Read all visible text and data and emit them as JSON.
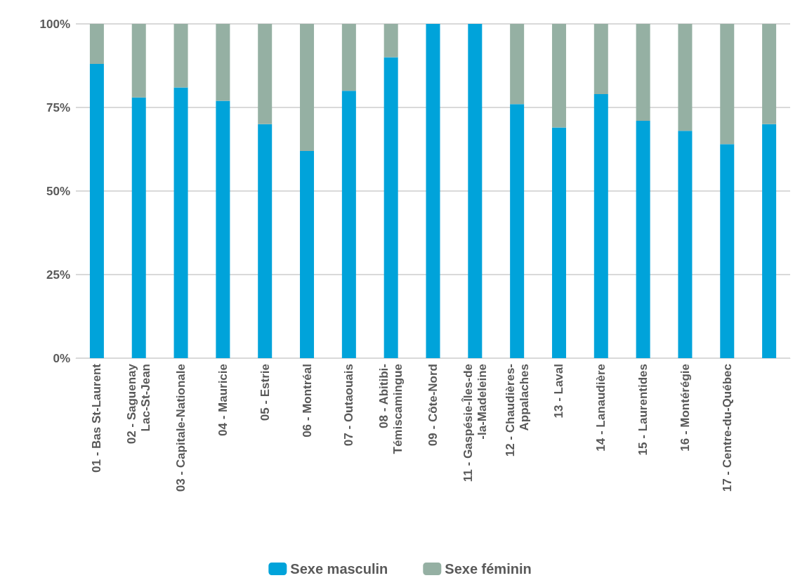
{
  "chart_data": {
    "type": "bar",
    "stacked": true,
    "categories": [
      "01 - Bas St-Laurent",
      "02 - Saguenay\nLac-St-Jean",
      "03 - Capitale-Nationale",
      "04 - Mauricie",
      "05 - Estrie",
      "06 - Montréal",
      "07 - Outaouais",
      "08 - Abitibi-\nTémiscamingue",
      "09 - Côte-Nord",
      "11 - Gaspésie-Îles-de\n-la-Madeleine",
      "12 - Chaudières-\nAppalaches",
      "13 - Laval",
      "14 - Lanaudière",
      "15 - Laurentides",
      "16 - Montérégie",
      "17 - Centre-du-Québec",
      null
    ],
    "series": [
      {
        "name": "Sexe masculin",
        "color": "#00a3da",
        "values": [
          88,
          78,
          81,
          77,
          70,
          62,
          80,
          90,
          100,
          100,
          76,
          69,
          79,
          71,
          68,
          64,
          70
        ]
      },
      {
        "name": "Sexe féminin",
        "color": "#95b0a3",
        "values": [
          12,
          22,
          19,
          23,
          30,
          38,
          20,
          10,
          0,
          0,
          24,
          31,
          21,
          29,
          32,
          36,
          30
        ]
      }
    ],
    "ylim": [
      0,
      100
    ],
    "yticks": [
      {
        "value": 0,
        "label": "0%"
      },
      {
        "value": 25,
        "label": "25%"
      },
      {
        "value": 50,
        "label": "50%"
      },
      {
        "value": 75,
        "label": "75%"
      },
      {
        "value": 100,
        "label": "100%"
      }
    ],
    "grid": "y",
    "legend": "bottom"
  }
}
